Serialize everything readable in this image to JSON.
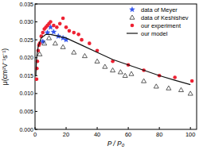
{
  "chart_data": {
    "type": "scatter",
    "x_label": "P / P₀",
    "y_label": "μ(cm²V⁻¹s⁻¹)",
    "xlim": [
      0,
      104
    ],
    "xticks": [
      0,
      20,
      40,
      60,
      80,
      100
    ],
    "ylim": [
      0,
      0.035
    ],
    "yticks": [
      {
        "value": 0,
        "label": "0.000"
      },
      {
        "value": 0.005,
        "label": "0.005"
      },
      {
        "value": 0.01,
        "label": "0.010"
      },
      {
        "value": 0.015,
        "label": "0.015"
      },
      {
        "value": 0.02,
        "label": "0.020"
      },
      {
        "value": 0.025,
        "label": "0.025"
      },
      {
        "value": 0.03,
        "label": "0.030"
      },
      {
        "value": 0.035,
        "label": "0.035"
      }
    ],
    "legend": "top-right",
    "series": [
      {
        "name": "data of Meyer",
        "type": "scatter",
        "marker": "star",
        "color": "#3355ee",
        "x": [
          5,
          8,
          10,
          12,
          15,
          18,
          20
        ],
        "values": [
          0.0245,
          0.027,
          0.0285,
          0.0272,
          0.026,
          0.0255,
          0.025
        ]
      },
      {
        "name": "data of Keshishev",
        "type": "scatter",
        "marker": "triangle-open",
        "color": "#333333",
        "x": [
          3,
          6,
          9,
          13,
          18,
          25,
          32,
          40,
          45,
          50,
          55,
          58,
          62,
          70,
          78,
          86,
          94,
          100
        ],
        "values": [
          0.021,
          0.024,
          0.0255,
          0.024,
          0.023,
          0.0215,
          0.0205,
          0.019,
          0.0175,
          0.0165,
          0.016,
          0.015,
          0.0155,
          0.0135,
          0.012,
          0.0115,
          0.011,
          0.01
        ]
      },
      {
        "name": "our experiment",
        "type": "scatter",
        "marker": "circle",
        "color": "#ee2233",
        "x": [
          1,
          1.2,
          1.5,
          2,
          2.5,
          3,
          4,
          5,
          6,
          7,
          8,
          9,
          10,
          12,
          14,
          16,
          18,
          20,
          22,
          25,
          28,
          30,
          35,
          40,
          50,
          60,
          70,
          80,
          90,
          101
        ],
        "values": [
          0.014,
          0.017,
          0.019,
          0.022,
          0.0235,
          0.024,
          0.026,
          0.027,
          0.028,
          0.0285,
          0.029,
          0.0295,
          0.03,
          0.029,
          0.0285,
          0.0295,
          0.031,
          0.0285,
          0.0275,
          0.027,
          0.0265,
          0.025,
          0.024,
          0.022,
          0.019,
          0.018,
          0.0165,
          0.015,
          0.0145,
          0.0135
        ]
      },
      {
        "name": "our model",
        "type": "line",
        "line_style": "solid",
        "color": "#111111",
        "x": [
          0.5,
          1,
          2,
          4,
          7,
          10,
          15,
          20,
          30,
          40,
          50,
          60,
          70,
          80,
          90,
          100
        ],
        "values": [
          0.015,
          0.02,
          0.023,
          0.0255,
          0.0265,
          0.0265,
          0.026,
          0.0255,
          0.0235,
          0.0215,
          0.0195,
          0.018,
          0.0165,
          0.015,
          0.0137,
          0.0125
        ]
      }
    ]
  }
}
